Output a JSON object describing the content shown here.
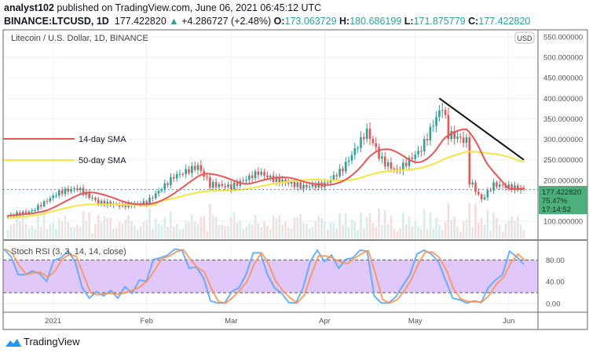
{
  "header": {
    "author": "analyst102",
    "published": " published on TradingView.com, June 06, 2021 06:45:12 UTC",
    "symbol": "BINANCE:LTCUSD, 1D",
    "last": "177.422820",
    "change": "+4.286727 (+2.48%)",
    "o_label": "O:",
    "o": "173.063729",
    "h_label": "H:",
    "h": "180.686199",
    "l_label": "L:",
    "l": "171.875779",
    "c_label": "C:",
    "c": "177.422820"
  },
  "colors": {
    "up": "#26a69a",
    "down": "#ef5350",
    "sma14": "#f05454",
    "sma50": "#f5e642",
    "stoch_k": "#5aa9ff",
    "stoch_d": "#ff9248",
    "band": "#e1c8fb",
    "price_label": "#4caf7d"
  },
  "chart_data": [
    {
      "type": "candlestick",
      "title": "Litecoin / U.S. Dollar, 1D, BINANCE",
      "currency_badge": "USD",
      "x_range": [
        "2020-12-17",
        "2021-06-06"
      ],
      "ylim": [
        50,
        560
      ],
      "y_ticks": [
        "100.000000",
        "200.000000",
        "250.000000",
        "300.000000",
        "350.000000",
        "400.000000",
        "450.000000",
        "500.000000",
        "550.000000"
      ],
      "x_ticks": [
        {
          "date": "2021-01-01",
          "label": "2021"
        },
        {
          "date": "2021-02-01",
          "label": "Feb"
        },
        {
          "date": "2021-03-01",
          "label": "Mar"
        },
        {
          "date": "2021-04-01",
          "label": "Apr"
        },
        {
          "date": "2021-05-01",
          "label": "May"
        },
        {
          "date": "2021-06-01",
          "label": "Jun"
        }
      ],
      "approx_close_keypoints": [
        [
          "2020-12-17",
          113
        ],
        [
          "2020-12-25",
          125
        ],
        [
          "2021-01-03",
          171
        ],
        [
          "2021-01-09",
          180
        ],
        [
          "2021-01-16",
          146
        ],
        [
          "2021-01-24",
          138
        ],
        [
          "2021-02-01",
          146
        ],
        [
          "2021-02-06",
          180
        ],
        [
          "2021-02-10",
          209
        ],
        [
          "2021-02-18",
          234
        ],
        [
          "2021-02-22",
          190
        ],
        [
          "2021-03-01",
          184
        ],
        [
          "2021-03-10",
          219
        ],
        [
          "2021-03-15",
          203
        ],
        [
          "2021-03-25",
          184
        ],
        [
          "2021-04-01",
          190
        ],
        [
          "2021-04-07",
          228
        ],
        [
          "2021-04-15",
          320
        ],
        [
          "2021-04-20",
          247
        ],
        [
          "2021-04-25",
          222
        ],
        [
          "2021-05-03",
          276
        ],
        [
          "2021-05-08",
          353
        ],
        [
          "2021-05-10",
          380
        ],
        [
          "2021-05-12",
          314
        ],
        [
          "2021-05-18",
          295
        ],
        [
          "2021-05-19",
          200
        ],
        [
          "2021-05-23",
          152
        ],
        [
          "2021-05-27",
          190
        ],
        [
          "2021-06-01",
          184
        ],
        [
          "2021-06-06",
          177.42
        ]
      ],
      "sma_legend": [
        {
          "label": "14-day SMA",
          "period": 14
        },
        {
          "label": "50-day SMA",
          "period": 50
        }
      ],
      "trendline": {
        "from": [
          "2021-05-09",
          400
        ],
        "to": [
          "2021-06-06",
          250
        ]
      },
      "last_price": {
        "value": "177.422820",
        "change_pct": "75.47%",
        "countdown": "17:14:52"
      }
    },
    {
      "type": "line",
      "title": "Stoch RSI (3, 3, 14, 14, close)",
      "ylim": [
        -15,
        110
      ],
      "y_ticks": [
        "80.00",
        "40.00",
        "0.00"
      ],
      "band": [
        20,
        80
      ],
      "k_values_evenly_spaced": [
        100,
        86,
        53,
        53,
        60,
        55,
        41,
        79,
        84,
        96,
        77,
        29,
        10,
        22,
        14,
        24,
        10,
        31,
        19,
        43,
        41,
        81,
        84,
        89,
        100,
        98,
        65,
        67,
        48,
        5,
        1,
        1,
        22,
        29,
        53,
        93,
        93,
        53,
        29,
        19,
        2,
        1,
        29,
        77,
        98,
        77,
        89,
        65,
        81,
        84,
        98,
        96,
        14,
        1,
        1,
        12,
        33,
        53,
        91,
        98,
        91,
        77,
        43,
        10,
        7,
        1,
        5,
        2,
        29,
        43,
        53,
        96,
        86,
        72
      ]
    }
  ],
  "footer": {
    "brand": "TradingView"
  }
}
